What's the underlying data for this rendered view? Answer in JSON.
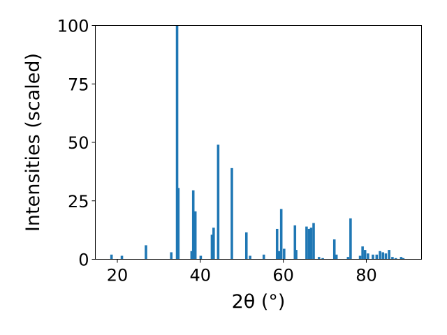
{
  "chart_data": {
    "type": "bar",
    "xlabel": "2θ (°)",
    "ylabel": "Intensities (scaled)",
    "xlim": [
      14.7,
      93.3
    ],
    "ylim": [
      0,
      100
    ],
    "x_ticks": [
      20,
      40,
      60,
      80
    ],
    "y_ticks": [
      0,
      25,
      50,
      75,
      100
    ],
    "grid": false,
    "bar_color": "#1f77b4",
    "bar_width": 0.6,
    "series": [
      {
        "x": [
          18.6,
          21.1,
          26.9,
          33.0,
          34.4,
          34.7,
          37.9,
          38.3,
          38.8,
          40.1,
          42.8,
          43.2,
          44.3,
          47.6,
          51.1,
          52.0,
          55.3,
          58.5,
          59.0,
          59.5,
          60.2,
          62.8,
          63.1,
          65.6,
          66.2,
          66.7,
          67.3,
          68.6,
          69.5,
          72.3,
          72.8,
          75.6,
          76.2,
          78.5,
          79.1,
          79.7,
          80.4,
          81.6,
          82.5,
          83.3,
          84.0,
          84.7,
          85.5,
          86.3,
          87.1,
          88.4,
          88.9
        ],
        "values": [
          2,
          1.5,
          6,
          3,
          100,
          30.5,
          3.5,
          29.5,
          20.5,
          1.5,
          10.5,
          13.5,
          49,
          39,
          11.5,
          1.5,
          2,
          13,
          3.5,
          21.5,
          4.5,
          14.5,
          4,
          14,
          13,
          13.5,
          15.5,
          1,
          0.5,
          8.5,
          2,
          1,
          17.5,
          1.5,
          5.5,
          4,
          2.5,
          2,
          2,
          3.5,
          3,
          2.5,
          4,
          1,
          0.5,
          1,
          0.5
        ]
      }
    ]
  }
}
